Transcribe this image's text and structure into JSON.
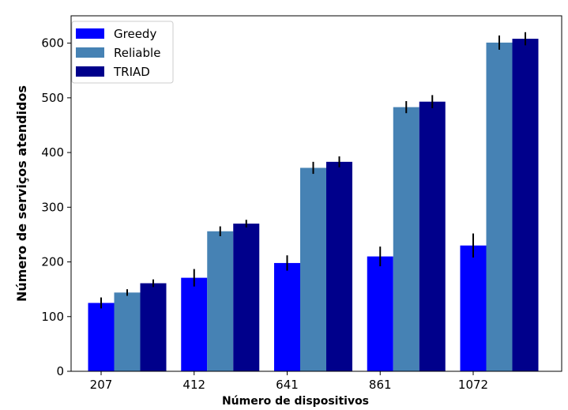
{
  "chart_data": {
    "type": "bar",
    "title": "",
    "xlabel": "Número de dispositivos",
    "ylabel": "Número de serviços atendidos",
    "categories": [
      "207",
      "412",
      "641",
      "861",
      "1072"
    ],
    "series": [
      {
        "name": "Greedy",
        "color": "#0000ff",
        "values": [
          125,
          171,
          198,
          210,
          230
        ],
        "errors": [
          10,
          16,
          14,
          18,
          22
        ]
      },
      {
        "name": "Reliable",
        "color": "#4682b4",
        "values": [
          144,
          256,
          372,
          483,
          601
        ],
        "errors": [
          6,
          9,
          11,
          11,
          13
        ]
      },
      {
        "name": "TRIAD",
        "color": "#00008b",
        "values": [
          161,
          270,
          383,
          493,
          608
        ],
        "errors": [
          7,
          7,
          10,
          12,
          12
        ]
      }
    ],
    "ylim": [
      0,
      650
    ],
    "yticks": [
      0,
      100,
      200,
      300,
      400,
      500,
      600
    ],
    "grid": false,
    "legend_position": "top-left"
  }
}
